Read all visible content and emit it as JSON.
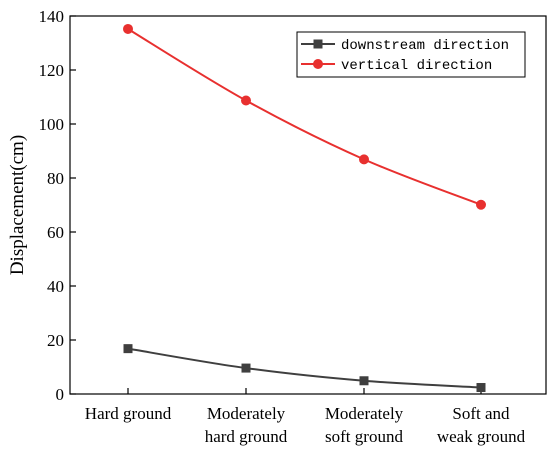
{
  "chart_data": {
    "type": "line",
    "categories": [
      [
        "Hard ground"
      ],
      [
        "Moderately",
        "hard ground"
      ],
      [
        "Moderately",
        "soft ground"
      ],
      [
        "Soft and",
        "weak ground"
      ]
    ],
    "series": [
      {
        "name": "downstream direction",
        "values": [
          16.8,
          9.6,
          4.9,
          2.4
        ],
        "color": "#3f3f3f",
        "marker": "square"
      },
      {
        "name": "vertical direction",
        "values": [
          135.2,
          108.7,
          86.9,
          70.1
        ],
        "color": "#e8302f",
        "marker": "circle"
      }
    ],
    "xlabel": "",
    "ylabel": "Displacement(cm)",
    "ylim": [
      0,
      140
    ],
    "yticks": [
      0,
      20,
      40,
      60,
      80,
      100,
      120,
      140
    ],
    "grid": false,
    "legend_position": "top-right"
  }
}
